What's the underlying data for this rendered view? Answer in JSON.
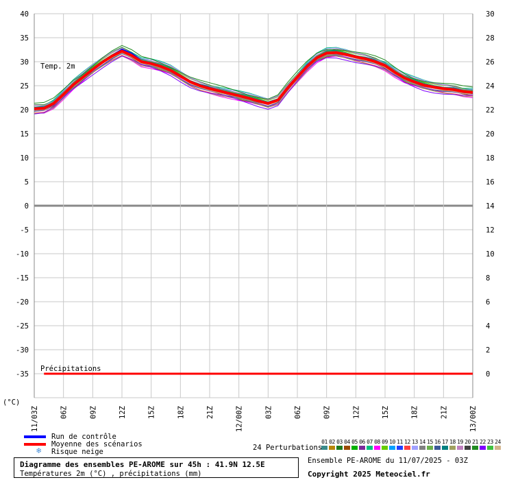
{
  "chart_data": {
    "type": "line",
    "x_ticks": [
      "11/03Z",
      "06Z",
      "09Z",
      "12Z",
      "15Z",
      "18Z",
      "21Z",
      "12/00Z",
      "03Z",
      "06Z",
      "09Z",
      "12Z",
      "15Z",
      "18Z",
      "21Z",
      "13/00Z"
    ],
    "x_start": "2025-07-11T03:00Z",
    "x_step_hours": 3,
    "y_left": {
      "ticks": [
        40,
        35,
        30,
        25,
        20,
        15,
        10,
        5,
        0,
        -5,
        -10,
        -15,
        -20,
        -25,
        -30,
        -35
      ],
      "range": [
        -40,
        40
      ],
      "unit_label": "(°C)"
    },
    "y_right": {
      "ticks": [
        30,
        28,
        26,
        24,
        22,
        20,
        18,
        16,
        14,
        12,
        10,
        8,
        6,
        4,
        2,
        0
      ],
      "range": [
        -2,
        30
      ]
    },
    "annotations": {
      "temp_label": "Temp. 2m",
      "precip_label": "Précipitations"
    },
    "grid": true,
    "hours": [
      0,
      1,
      2,
      3,
      4,
      5,
      6,
      7,
      8,
      9,
      10,
      11,
      12,
      13,
      14,
      15,
      16,
      17,
      18,
      19,
      20,
      21,
      22,
      23,
      24,
      25,
      26,
      27,
      28,
      29,
      30,
      31,
      32,
      33,
      34,
      35,
      36,
      37,
      38,
      39,
      40,
      41,
      42,
      43,
      44,
      45
    ],
    "series": [
      {
        "name": "Moyenne des scénarios",
        "role": "mean",
        "values": [
          20.2,
          20.3,
          21.3,
          23.2,
          25.2,
          26.8,
          28.4,
          29.9,
          31.2,
          32.2,
          31.3,
          30.0,
          29.6,
          29.0,
          28.2,
          27.0,
          25.8,
          25.0,
          24.4,
          23.9,
          23.4,
          22.9,
          22.4,
          21.8,
          21.3,
          22.0,
          24.5,
          26.8,
          29.0,
          30.8,
          31.8,
          31.9,
          31.5,
          31.0,
          30.6,
          30.0,
          29.2,
          27.8,
          26.6,
          25.8,
          25.1,
          24.7,
          24.4,
          24.2,
          23.8,
          23.6
        ]
      },
      {
        "name": "Run de contrôle",
        "role": "control",
        "values": [
          20.0,
          20.1,
          21.0,
          23.0,
          25.0,
          26.6,
          28.2,
          29.8,
          31.4,
          32.6,
          31.8,
          30.2,
          29.8,
          29.2,
          28.4,
          27.2,
          26.0,
          25.2,
          24.6,
          24.1,
          23.6,
          23.1,
          22.6,
          22.0,
          21.5,
          22.2,
          24.7,
          27.0,
          29.3,
          31.0,
          32.0,
          32.1,
          31.6,
          31.1,
          30.7,
          30.1,
          29.4,
          28.0,
          26.8,
          26.0,
          25.3,
          24.9,
          24.5,
          24.2,
          23.8,
          23.4
        ]
      }
    ],
    "perturbation_offsets": [
      0.4,
      -0.3,
      0.8,
      -0.7,
      0.2,
      -0.5,
      1.0,
      -1.0,
      0.6,
      -0.2,
      0.3,
      -0.8,
      0.9,
      -0.4,
      0.1,
      -0.6,
      0.5,
      -0.9,
      0.7,
      -0.1,
      1.1,
      -1.1,
      0.35,
      -0.35
    ],
    "precipitation": {
      "values_mm": 0,
      "axis_level": -35
    }
  },
  "legend": {
    "control_label": "Run de contrôle",
    "mean_label": "Moyenne des scénarios",
    "snow_label": "Risque neige",
    "control_color": "#0000ff",
    "mean_color": "#ff0000",
    "snow_icon": "snowflake-icon"
  },
  "perturbations": {
    "label": "24 Perturbations",
    "numbers": [
      "01",
      "02",
      "03",
      "04",
      "05",
      "06",
      "07",
      "08",
      "09",
      "10",
      "11",
      "12",
      "13",
      "14",
      "15",
      "16",
      "17",
      "18",
      "19",
      "20",
      "21",
      "22",
      "23",
      "24"
    ],
    "colors": [
      "#3a8a8a",
      "#b8860b",
      "#1e7b1e",
      "#9a4a00",
      "#00b000",
      "#7a2a9a",
      "#00c080",
      "#ff00ff",
      "#66cc00",
      "#00a0ff",
      "#2040ff",
      "#ff4040",
      "#a0a0ff",
      "#808080",
      "#6ab04c",
      "#3b5998",
      "#008080",
      "#a0a060",
      "#c080c0",
      "#404040",
      "#228b22",
      "#8000ff",
      "#40c040",
      "#d2b48c"
    ]
  },
  "footer": {
    "title": "Diagramme des ensembles PE-AROME sur 45h : 41.9N 12.5E",
    "subtitle": "Températures 2m (°C) , précipitations (mm)",
    "ensemble_info": "Ensemble PE-AROME du 11/07/2025 - 03Z",
    "copyright": "Copyright 2025 Meteociel.fr"
  }
}
